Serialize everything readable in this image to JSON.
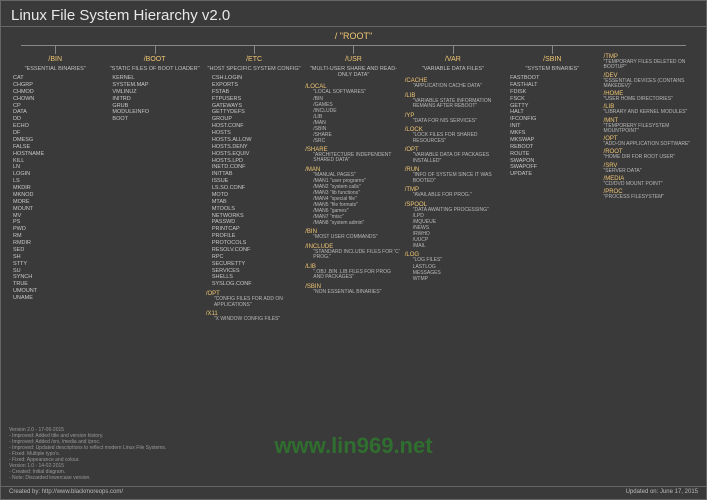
{
  "title": "Linux File System Hierarchy v2.0",
  "root": "/ \"ROOT\"",
  "watermark": "www.lin969.net",
  "footer_left_lines": [
    "Version 2.0 - 17-06-2015",
    "- Improved: Added title and version history.",
    "- Improved: Added /srv, /media and /proc.",
    "- Improved: Updated descriptions to reflect modern Linux File Systems.",
    "- Fixed: Multiple typo's.",
    "- Fixed: Appearance and colour.",
    "Version 1.0 - 14-02-2015",
    "- Created: Initial diagram.",
    "- Note: Discarded lowercase version."
  ],
  "created_by": "Created by: http://www.blackmoreops.com/",
  "updated_on": "Updated on: June 17, 2015",
  "cols": [
    {
      "hdr": "/BIN",
      "desc": "\"ESSENTIAL BINARIES\"",
      "list": [
        "CAT",
        "CHGRP",
        "CHMOD",
        "CHOWN",
        "CP",
        "DATA",
        "DD",
        "ECHO",
        "DF",
        "DMESG",
        "FALSE",
        "HOSTNAME",
        "KILL",
        "LN",
        "LOGIN",
        "LS",
        "MKDIR",
        "MKNOD",
        "MORE",
        "MOUNT",
        "MV",
        "PS",
        "PWD",
        "RM",
        "RMDIR",
        "SED",
        "SH",
        "STTY",
        "SU",
        "SYNCH",
        "TRUE",
        "UMOUNT",
        "UNAME"
      ]
    },
    {
      "hdr": "/BOOT",
      "desc": "\"STATIC FILES OF BOOT LOADER\"",
      "list": [
        "KERNEL",
        "SYSTEM.MAP",
        "VMLINUZ",
        "INITRD",
        "GRUB",
        "MODULEINFO",
        "BOOT"
      ]
    },
    {
      "hdr": "/ETC",
      "desc": "\"HOST SPECIFIC SYSTEM CONFIG\"",
      "list": [
        "CSH.LOGIN",
        "EXPORTS",
        "FSTAB",
        "FTPUSERS",
        "GATEWAYS",
        "GETTYDEFS",
        "GROUP",
        "HOST.CONF",
        "HOSTS",
        "HOSTS.ALLOW",
        "HOSTS.DENY",
        "HOSTS.EQUIV",
        "HOSTS.LPD",
        "INETD.CONF",
        "INITTAB",
        "ISSUE",
        "LS.SO.CONF",
        "MOTD",
        "MTAB",
        "MTOOLS",
        "NETWORKS",
        "PASSWD",
        "PRINTCAP",
        "PROFILE",
        "PROTOCOLS",
        "RESOLV.CONF",
        "RPC",
        "SECURETTY",
        "SERVICES",
        "SHELLS",
        "SYSLOG.CONF"
      ],
      "subs": [
        {
          "hdr": "/OPT",
          "desc": "\"CONFIG FILES FOR ADD ON APPLICATIONS\""
        },
        {
          "hdr": "/X11",
          "desc": "\"X WINDOW CONFIG FILES\""
        }
      ]
    },
    {
      "hdr": "/USR",
      "desc": "\"MULTI-USER SHARE AND READ-ONLY DATA\"",
      "subs": [
        {
          "hdr": "/LOCAL",
          "desc": "\"LOCAL SOFTWARES\"",
          "list": [
            "/BIN",
            "/GAMES",
            "/INCLUDE",
            "/LIB",
            "/MAN",
            "/SBIN",
            "/SHARE",
            "/SRC"
          ]
        },
        {
          "hdr": "/SHARE",
          "desc": "\"ARCHITECTURE INDEPENDENT SHARED DATA\""
        },
        {
          "hdr": "/MAN",
          "desc": "\"MANUAL PAGES\"",
          "list": [
            "/MAN1 \"user programs\"",
            "/MAN2 \"system calls\"",
            "/MAN3 \"lib functions\"",
            "/MAN4 \"special file\"",
            "/MAN5 \"file formats\"",
            "/MAN6 \"games\"",
            "/MAN7 \"misc\"",
            "/MAN8 \"system admin\""
          ]
        },
        {
          "hdr": "/BIN",
          "desc": "\"MOST USER COMMANDS\""
        },
        {
          "hdr": "/INCLUDE",
          "desc": "\"STANDARD INCLUDE FILES FOR 'C' PROG.\""
        },
        {
          "hdr": "/LIB",
          "desc": "\".OBJ .BIN .LIB FILES FOR PROG AND PACKAGES\""
        },
        {
          "hdr": "/SBIN",
          "desc": "\"NON ESSENTIAL BINARIES\""
        }
      ]
    },
    {
      "hdr": "/VAR",
      "desc": "\"VARIABLE DATA FILES\"",
      "subs": [
        {
          "hdr": "/CACHE",
          "desc": "\"APPLICATION CACHE DATA\""
        },
        {
          "hdr": "/LIB",
          "desc": "\"VARIABLE STATE INFORMATION REMAINS AFTER REBOOT\""
        },
        {
          "hdr": "/YP",
          "desc": "\"DATA FOR NIS SERVICES\""
        },
        {
          "hdr": "/LOCK",
          "desc": "\"LOCK FILES FOR SHARED RESOURCES\""
        },
        {
          "hdr": "/OPT",
          "desc": "\"VARIABLE DATA OF PACKAGES INSTALLED\""
        },
        {
          "hdr": "/RUN",
          "desc": "\"INFO OF SYSTEM SINCE IT WAS BOOTED\""
        },
        {
          "hdr": "/TMP",
          "desc": "\"AVAILABLE FOR PROG.\""
        },
        {
          "hdr": "/SPOOL",
          "desc": "\"DATA AWAITING PROCESSING\"",
          "list": [
            "/LPD",
            "/MQUEUE",
            "/NEWS",
            "/RWHO",
            "/UUCP",
            "/MAIL"
          ]
        },
        {
          "hdr": "/LOG",
          "desc": "\"LOG FILES\"",
          "list": [
            "LASTLOG",
            "MESSAGES",
            "WTMP"
          ],
          "green": true
        }
      ]
    },
    {
      "hdr": "/SBIN",
      "desc": "\"SYSTEM BINARIES\"",
      "list": [
        "FASTBOOT",
        "FASTHALT",
        "FDISK",
        "FSCK",
        "GETTY",
        "HALT",
        "IFCONFIG",
        "INIT",
        "MKFS",
        "MKSWAP",
        "REBOOT",
        "ROUTE",
        "SWAPON",
        "SWAPOFF",
        "UPDATE"
      ]
    }
  ],
  "rcol": [
    {
      "hdr": "/TMP",
      "desc": "\"TEMPORARY FILES DELETED ON BOOTUP\""
    },
    {
      "hdr": "/DEV",
      "desc": "\"ESSENTIAL DEVICES (CONTAINS MAKEDEV)\""
    },
    {
      "hdr": "/HOME",
      "desc": "\"USER HOME DIRECTORIES\""
    },
    {
      "hdr": "/LIB",
      "desc": "\"LIBRARY AND KERNEL MODULES\""
    },
    {
      "hdr": "/MNT",
      "desc": "\"TEMPORERY FILESYSTEM MOUNTPOINT\""
    },
    {
      "hdr": "/OPT",
      "desc": "\"ADD-ON APPLICATION SOFTWARE\""
    },
    {
      "hdr": "/ROOT",
      "desc": "\"HOME DIR FOR ROOT USER\""
    },
    {
      "hdr": "/SRV",
      "desc": "\"SERVER DATA\""
    },
    {
      "hdr": "/MEDIA",
      "desc": "\"CD/DVD MOUNT POINT\""
    },
    {
      "hdr": "/PROC",
      "desc": "\"PROCESS FILESYSTEM\""
    }
  ]
}
